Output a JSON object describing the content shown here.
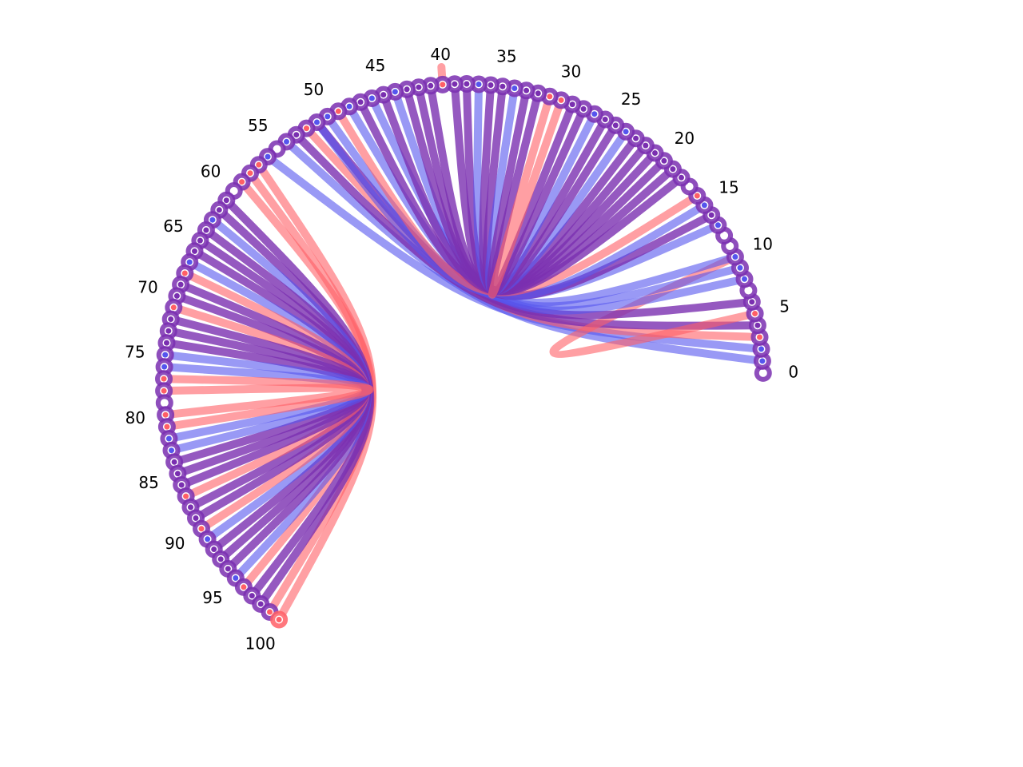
{
  "chart_data": {
    "type": "arc-diagram",
    "node_count": 101,
    "arc_span_degrees": 230,
    "tick_labels": [
      "0",
      "5",
      "10",
      "15",
      "20",
      "25",
      "30",
      "35",
      "40",
      "45",
      "50",
      "55",
      "60",
      "65",
      "70",
      "75",
      "80",
      "85",
      "90",
      "95",
      "100"
    ],
    "colors": {
      "pair": "#7a2fb0",
      "up": "#5555ee",
      "down": "#ff5f66"
    },
    "links": [
      [
        1,
        54,
        "up"
      ],
      [
        2,
        56,
        "up"
      ],
      [
        3,
        52,
        "down"
      ],
      [
        4,
        53,
        "pair"
      ],
      [
        5,
        10,
        "down"
      ],
      [
        6,
        51,
        "pair"
      ],
      [
        8,
        46,
        "up"
      ],
      [
        9,
        48,
        "up"
      ],
      [
        10,
        50,
        "up"
      ],
      [
        13,
        51,
        "up"
      ],
      [
        14,
        47,
        "pair"
      ],
      [
        15,
        44,
        "up"
      ],
      [
        16,
        49,
        "down"
      ],
      [
        18,
        45,
        "pair"
      ],
      [
        19,
        43,
        "pair"
      ],
      [
        20,
        42,
        "pair"
      ],
      [
        21,
        41,
        "pair"
      ],
      [
        22,
        39,
        "pair"
      ],
      [
        23,
        38,
        "pair"
      ],
      [
        24,
        37,
        "up"
      ],
      [
        25,
        36,
        "pair"
      ],
      [
        26,
        35,
        "pair"
      ],
      [
        27,
        34,
        "up"
      ],
      [
        28,
        33,
        "pair"
      ],
      [
        29,
        32,
        "pair"
      ],
      [
        30,
        31,
        "down"
      ],
      [
        40,
        40,
        "down"
      ],
      [
        57,
        99,
        "down"
      ],
      [
        58,
        100,
        "down"
      ],
      [
        59,
        96,
        "down"
      ],
      [
        61,
        98,
        "pair"
      ],
      [
        62,
        97,
        "pair"
      ],
      [
        63,
        95,
        "up"
      ],
      [
        64,
        94,
        "pair"
      ],
      [
        65,
        93,
        "pair"
      ],
      [
        66,
        92,
        "pair"
      ],
      [
        67,
        91,
        "up"
      ],
      [
        68,
        90,
        "down"
      ],
      [
        69,
        89,
        "pair"
      ],
      [
        70,
        88,
        "pair"
      ],
      [
        71,
        87,
        "down"
      ],
      [
        72,
        86,
        "pair"
      ],
      [
        73,
        85,
        "pair"
      ],
      [
        74,
        84,
        "pair"
      ],
      [
        75,
        83,
        "up"
      ],
      [
        76,
        82,
        "up"
      ],
      [
        77,
        81,
        "down"
      ],
      [
        78,
        80,
        "down"
      ]
    ]
  }
}
